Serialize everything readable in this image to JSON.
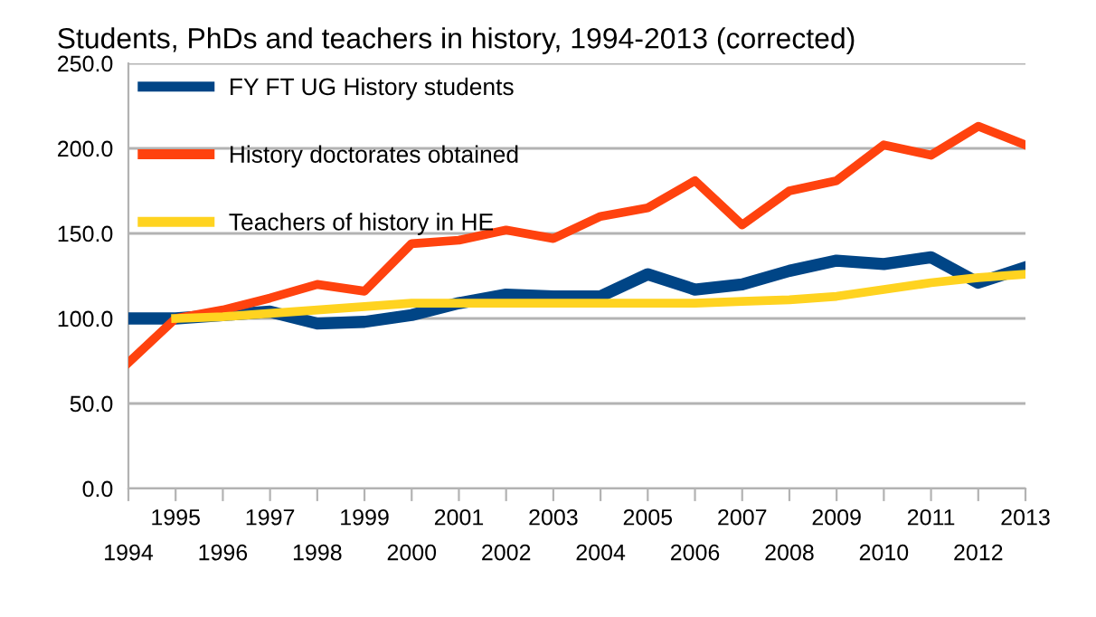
{
  "chart_data": {
    "type": "line",
    "title": "Students, PhDs and teachers in history, 1994-2013 (corrected)",
    "categories": [
      "1994",
      "1995",
      "1996",
      "1997",
      "1998",
      "1999",
      "2000",
      "2001",
      "2002",
      "2003",
      "2004",
      "2005",
      "2006",
      "2007",
      "2008",
      "2009",
      "2010",
      "2011",
      "2012",
      "2013"
    ],
    "series": [
      {
        "name": "FY FT UG History students",
        "color": "#004586",
        "values": [
          100,
          100,
          102,
          104,
          97,
          98,
          102,
          109,
          114,
          113,
          113,
          126,
          117,
          120,
          128,
          134,
          132,
          136,
          121,
          130
        ]
      },
      {
        "name": "History doctorates obtained",
        "color": "#ff420e",
        "values": [
          74,
          100,
          105,
          112,
          120,
          116,
          144,
          146,
          152,
          147,
          160,
          165,
          181,
          155,
          175,
          181,
          202,
          196,
          213,
          202
        ]
      },
      {
        "name": "Teachers of history in HE",
        "color": "#ffd320",
        "values": [
          null,
          100,
          101,
          103,
          105,
          107,
          109,
          109,
          109,
          109,
          109,
          109,
          109,
          110,
          111,
          113,
          117,
          121,
          124,
          126
        ]
      }
    ],
    "ylim": [
      0,
      250
    ],
    "yticks": [
      {
        "value": 0,
        "label": "0.0"
      },
      {
        "value": 50,
        "label": "50.0"
      },
      {
        "value": 100,
        "label": "100.0"
      },
      {
        "value": 150,
        "label": "150.0"
      },
      {
        "value": 200,
        "label": "200.0"
      },
      {
        "value": 250,
        "label": "250.0"
      }
    ],
    "grid": "y",
    "legend": "top left",
    "marker": "none",
    "line_style": "solid"
  }
}
